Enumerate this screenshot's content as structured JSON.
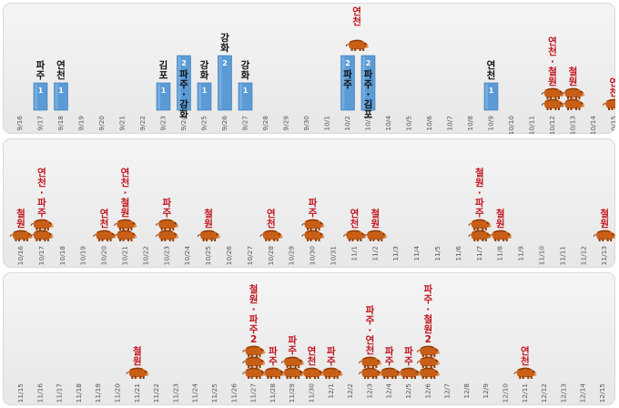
{
  "chart_data": {
    "type": "bar",
    "ylim": [
      0,
      2
    ],
    "grid": false,
    "legend": "none",
    "colors": {
      "bar": "#5b9bd5",
      "bar_edge": "#3a78b5",
      "boar": "#c85f17",
      "boar_dark": "#8e3d08",
      "label_bar": "#111111",
      "label_boar": "#c0141c"
    },
    "panels": [
      {
        "categories": [
          "9/16",
          "9/17",
          "9/18",
          "9/19",
          "9/20",
          "9/21",
          "9/22",
          "9/23",
          "9/24",
          "9/25",
          "9/26",
          "9/27",
          "9/28",
          "9/29",
          "9/30",
          "10/1",
          "10/2",
          "10/3",
          "10/4",
          "10/5",
          "10/6",
          "10/7",
          "10/8",
          "10/9",
          "10/10",
          "10/11",
          "10/12",
          "10/13",
          "10/14",
          "10/15"
        ],
        "bars": [
          {
            "date": "9/17",
            "value": 1,
            "value_label": "1",
            "label_lines": [
              "파",
              "주"
            ]
          },
          {
            "date": "9/18",
            "value": 1,
            "value_label": "1",
            "label_lines": [
              "연",
              "천"
            ]
          },
          {
            "date": "9/23",
            "value": 1,
            "value_label": "1",
            "label_lines": [
              "김",
              "포"
            ]
          },
          {
            "date": "9/24",
            "value": 2,
            "value_label": "2",
            "inside_lines": [
              "파",
              "주",
              "·",
              "강",
              "화"
            ]
          },
          {
            "date": "9/25",
            "value": 1,
            "value_label": "1",
            "label_lines": [
              "강",
              "화"
            ]
          },
          {
            "date": "9/26",
            "value": 2,
            "value_label": "2",
            "label_lines": [
              "강",
              "화"
            ]
          },
          {
            "date": "9/27",
            "value": 1,
            "value_label": "1",
            "label_lines": [
              "강",
              "화"
            ]
          },
          {
            "date": "10/2",
            "value": 2,
            "value_label": "2",
            "inside_lines": [
              "파",
              "주"
            ]
          },
          {
            "date": "10/3",
            "value": 2,
            "value_label": "2",
            "inside_lines": [
              "파",
              "주",
              "·",
              "김",
              "포"
            ]
          },
          {
            "date": "10/9",
            "value": 1,
            "value_label": "1",
            "label_lines": [
              "연",
              "천"
            ]
          }
        ],
        "boars": [
          {
            "date": "10/2",
            "count": 1,
            "label_lines": [],
            "offset": 0.45
          },
          {
            "date": "10/12",
            "count": 2,
            "label_lines": [
              "연",
              "천",
              "·",
              "철",
              "원"
            ]
          },
          {
            "date": "10/13",
            "count": 2,
            "label_lines": [
              "철",
              "원"
            ]
          },
          {
            "date": "10/15",
            "count": 1,
            "label_lines": [
              "연",
              "천"
            ]
          }
        ],
        "extra_labels": [
          {
            "date": "10/2",
            "offset": 0.45,
            "lines": [
              "연",
              "천"
            ]
          }
        ]
      },
      {
        "categories": [
          "10/16",
          "10/17",
          "10/18",
          "10/19",
          "10/20",
          "10/21",
          "10/22",
          "10/23",
          "10/24",
          "10/25",
          "10/26",
          "10/27",
          "10/28",
          "10/29",
          "10/30",
          "10/31",
          "11/1",
          "11/2",
          "11/3",
          "11/4",
          "11/5",
          "11/6",
          "11/7",
          "11/8",
          "11/9",
          "11/10",
          "11/11",
          "11/12",
          "11/13",
          "11/14"
        ],
        "bars": [],
        "boars": [
          {
            "date": "10/16",
            "count": 1,
            "label_lines": [
              "철",
              "원"
            ]
          },
          {
            "date": "10/17",
            "count": 2,
            "label_lines": [
              "연",
              "천",
              "·",
              "파",
              "주"
            ]
          },
          {
            "date": "10/20",
            "count": 1,
            "label_lines": [
              "연",
              "천"
            ]
          },
          {
            "date": "10/21",
            "count": 2,
            "label_lines": [
              "연",
              "천",
              "·",
              "철",
              "원"
            ]
          },
          {
            "date": "10/23",
            "count": 2,
            "label_lines": [
              "파",
              "주"
            ]
          },
          {
            "date": "10/25",
            "count": 1,
            "label_lines": [
              "철",
              "원"
            ]
          },
          {
            "date": "10/28",
            "count": 1,
            "label_lines": [
              "연",
              "천"
            ]
          },
          {
            "date": "10/30",
            "count": 2,
            "label_lines": [
              "파",
              "주"
            ]
          },
          {
            "date": "11/1",
            "count": 1,
            "label_lines": [
              "연",
              "천"
            ]
          },
          {
            "date": "11/2",
            "count": 1,
            "label_lines": [
              "철",
              "원"
            ]
          },
          {
            "date": "11/7",
            "count": 2,
            "label_lines": [
              "철",
              "원",
              "·",
              "파",
              "주"
            ]
          },
          {
            "date": "11/8",
            "count": 1,
            "label_lines": [
              "철",
              "원"
            ]
          },
          {
            "date": "11/13",
            "count": 1,
            "label_lines": [
              "철",
              "원"
            ]
          }
        ]
      },
      {
        "categories": [
          "11/15",
          "11/16",
          "11/17",
          "11/18",
          "11/19",
          "11/20",
          "11/21",
          "11/22",
          "11/23",
          "11/24",
          "11/25",
          "11/26",
          "11/27",
          "11/28",
          "11/29",
          "11/30",
          "12/1",
          "12/2",
          "12/3",
          "12/4",
          "12/5",
          "12/6",
          "12/7",
          "12/8",
          "12/9",
          "12/10",
          "12/11",
          "12/12",
          "12/13",
          "12/14",
          "12/15"
        ],
        "bars": [],
        "boars": [
          {
            "date": "11/21",
            "count": 1,
            "label_lines": [
              "철",
              "원"
            ]
          },
          {
            "date": "11/27",
            "count": 3,
            "label_lines": [
              "철",
              "원",
              "·",
              "파",
              "주",
              "2"
            ]
          },
          {
            "date": "11/28",
            "count": 1,
            "label_lines": [
              "파",
              "주"
            ]
          },
          {
            "date": "11/29",
            "count": 2,
            "label_lines": [
              "파",
              "주"
            ]
          },
          {
            "date": "11/30",
            "count": 1,
            "label_lines": [
              "연",
              "천"
            ]
          },
          {
            "date": "12/1",
            "count": 1,
            "label_lines": [
              "파",
              "주"
            ]
          },
          {
            "date": "12/3",
            "count": 2,
            "label_lines": [
              "파",
              "주",
              "·",
              "연",
              "천"
            ]
          },
          {
            "date": "12/4",
            "count": 1,
            "label_lines": [
              "파",
              "주"
            ]
          },
          {
            "date": "12/5",
            "count": 1,
            "label_lines": [
              "파",
              "주"
            ]
          },
          {
            "date": "12/6",
            "count": 3,
            "label_lines": [
              "파",
              "주",
              "·",
              "철",
              "원",
              "2"
            ]
          },
          {
            "date": "12/11",
            "count": 1,
            "label_lines": [
              "연",
              "천"
            ]
          }
        ]
      }
    ]
  }
}
